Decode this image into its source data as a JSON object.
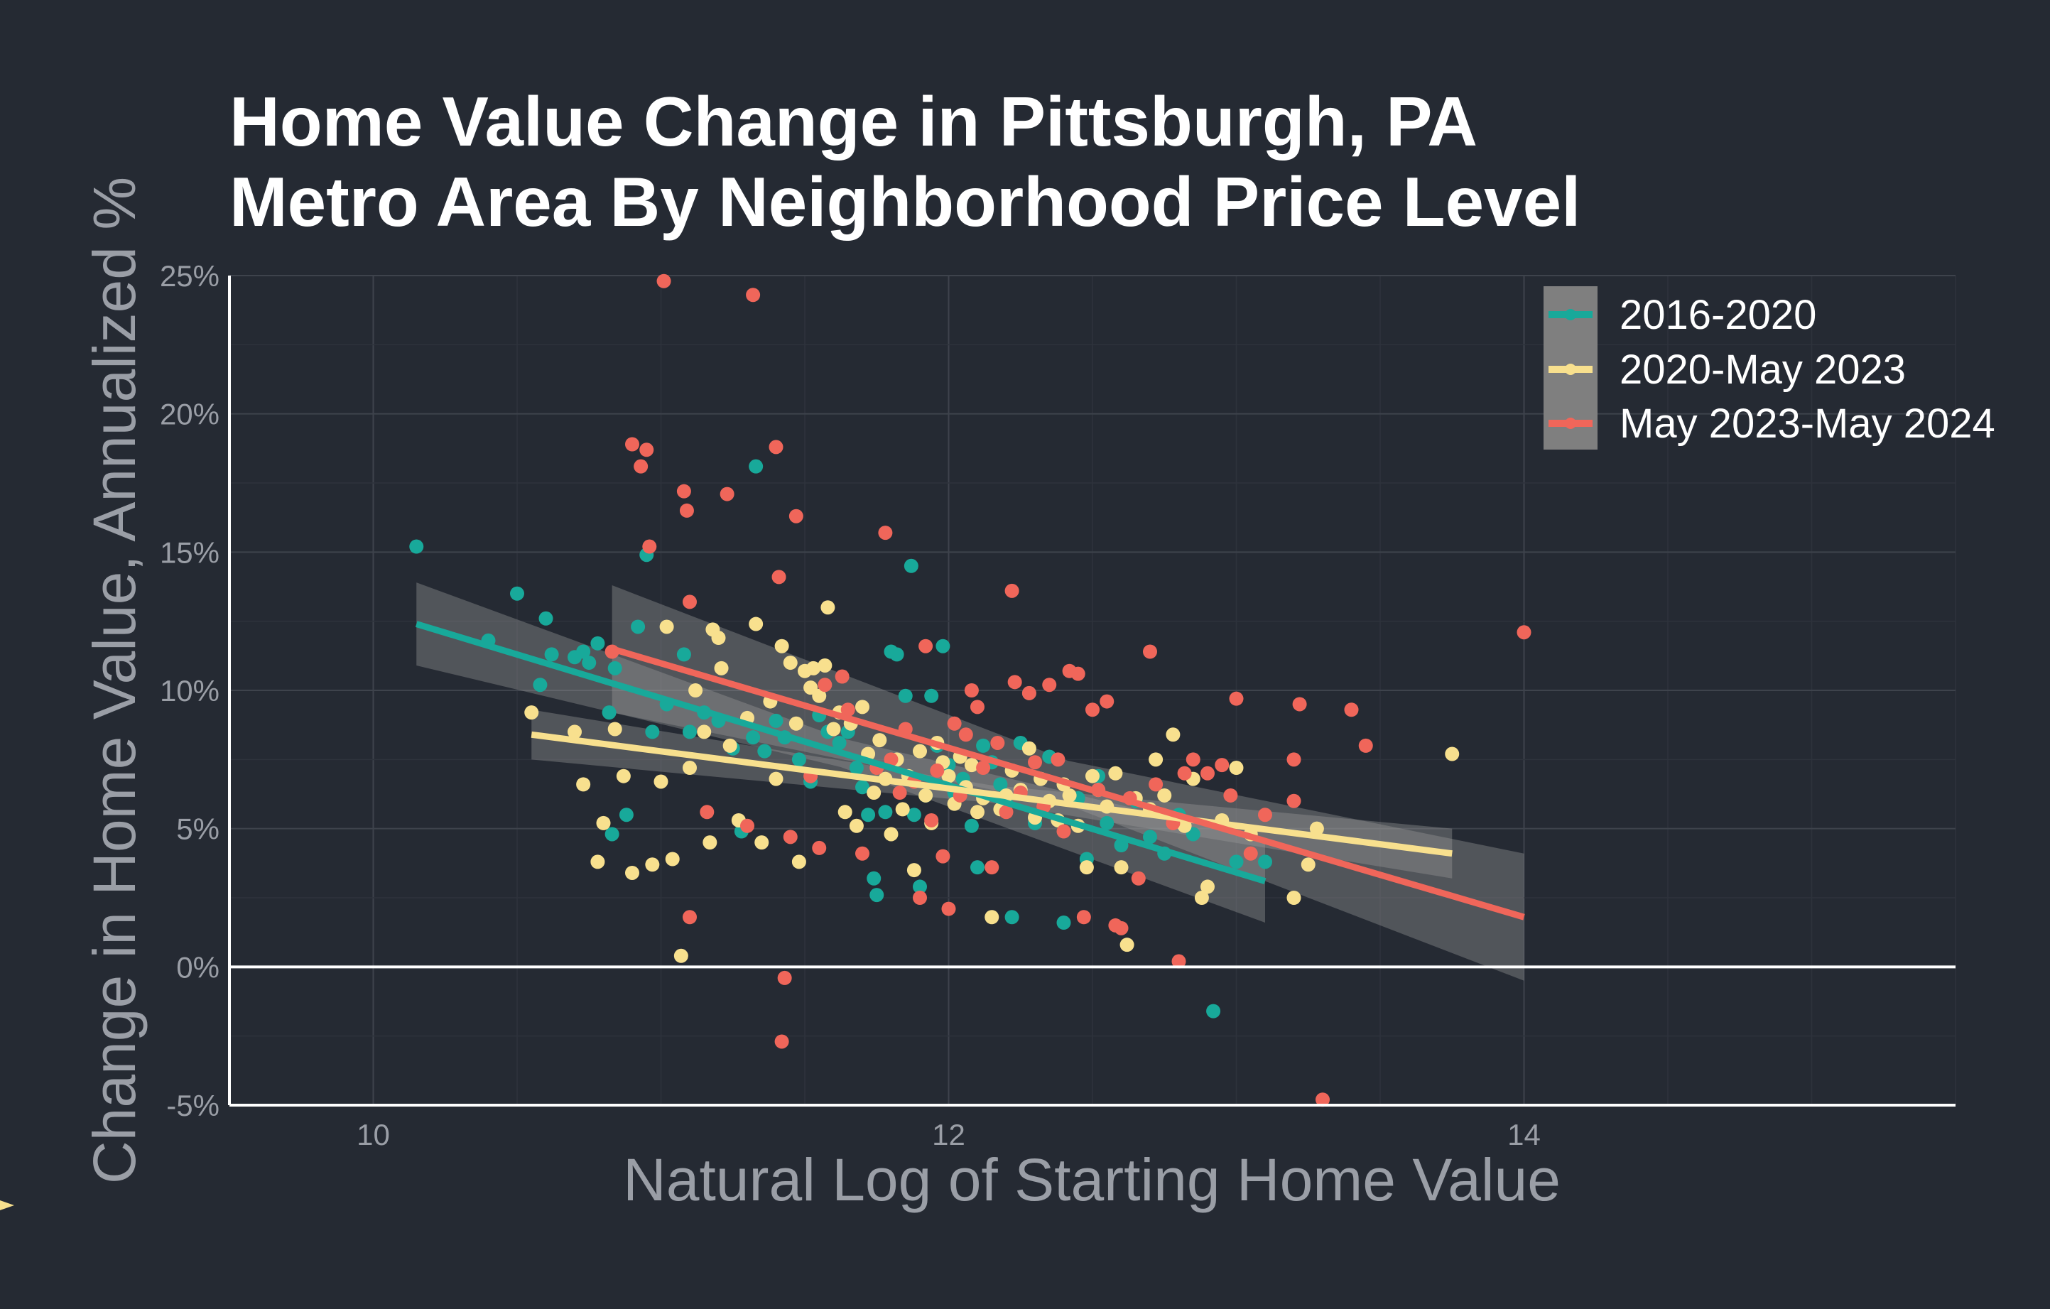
{
  "chart_data": {
    "type": "scatter",
    "title_lines": [
      "Home Value Change in Pittsburgh, PA",
      "Metro Area By Neighborhood Price Level"
    ],
    "xlabel": "Natural Log of Starting Home Value",
    "ylabel": "Change in Home Value, Annualized %",
    "xlim": [
      9.5,
      15.5
    ],
    "ylim": [
      -5,
      25
    ],
    "x_ticks": [
      10,
      12,
      14
    ],
    "x_tick_labels": [
      "10",
      "12",
      "14"
    ],
    "y_ticks": [
      -5,
      0,
      5,
      10,
      15,
      20,
      25
    ],
    "y_tick_labels": [
      "-5%",
      "0%",
      "5%",
      "10%",
      "15%",
      "20%",
      "25%"
    ],
    "grid": true,
    "zero_line": 0,
    "legend": "top-right",
    "series": [
      {
        "name": "2016-2020",
        "color": "#18a99a",
        "trend": {
          "x0": 10.15,
          "y0": 12.4,
          "x1": 13.1,
          "y1": 3.1,
          "band": 1.5
        },
        "points": [
          [
            10.15,
            15.2
          ],
          [
            10.4,
            11.8
          ],
          [
            10.5,
            13.5
          ],
          [
            10.58,
            10.2
          ],
          [
            10.6,
            12.6
          ],
          [
            10.62,
            11.3
          ],
          [
            10.7,
            11.2
          ],
          [
            10.73,
            11.4
          ],
          [
            10.75,
            11
          ],
          [
            10.78,
            11.7
          ],
          [
            10.82,
            9.2
          ],
          [
            10.84,
            10.8
          ],
          [
            10.88,
            5.5
          ],
          [
            10.92,
            12.3
          ],
          [
            10.95,
            14.9
          ],
          [
            10.83,
            4.8
          ],
          [
            10.97,
            8.5
          ],
          [
            11.02,
            9.5
          ],
          [
            11.08,
            11.3
          ],
          [
            11.1,
            8.5
          ],
          [
            11.15,
            9.2
          ],
          [
            11.2,
            8.9
          ],
          [
            11.25,
            7.9
          ],
          [
            11.28,
            4.9
          ],
          [
            11.32,
            8.3
          ],
          [
            11.33,
            18.1
          ],
          [
            11.36,
            7.8
          ],
          [
            11.4,
            8.9
          ],
          [
            11.43,
            8.3
          ],
          [
            11.48,
            7.5
          ],
          [
            11.52,
            6.7
          ],
          [
            11.55,
            9.1
          ],
          [
            11.58,
            8.5
          ],
          [
            11.62,
            8.1
          ],
          [
            11.65,
            8.5
          ],
          [
            11.68,
            7.2
          ],
          [
            11.7,
            6.5
          ],
          [
            11.72,
            5.5
          ],
          [
            11.74,
            3.2
          ],
          [
            11.75,
            2.6
          ],
          [
            11.78,
            5.6
          ],
          [
            11.8,
            11.4
          ],
          [
            11.82,
            11.3
          ],
          [
            11.85,
            9.8
          ],
          [
            11.87,
            14.5
          ],
          [
            11.88,
            5.5
          ],
          [
            11.9,
            2.9
          ],
          [
            11.92,
            6.2
          ],
          [
            11.94,
            9.8
          ],
          [
            11.96,
            8
          ],
          [
            11.98,
            11.6
          ],
          [
            12.0,
            7.3
          ],
          [
            12.02,
            6.3
          ],
          [
            12.05,
            6.8
          ],
          [
            12.08,
            5.1
          ],
          [
            12.1,
            3.6
          ],
          [
            12.12,
            8
          ],
          [
            12.15,
            7.4
          ],
          [
            12.18,
            6.6
          ],
          [
            12.2,
            5.9
          ],
          [
            12.22,
            1.8
          ],
          [
            12.25,
            8.1
          ],
          [
            12.28,
            9.9
          ],
          [
            12.3,
            5.2
          ],
          [
            12.35,
            7.6
          ],
          [
            12.4,
            1.6
          ],
          [
            12.45,
            6.1
          ],
          [
            12.48,
            3.9
          ],
          [
            12.52,
            6.9
          ],
          [
            12.55,
            5.2
          ],
          [
            12.6,
            4.4
          ],
          [
            12.65,
            6
          ],
          [
            12.7,
            4.7
          ],
          [
            12.75,
            4.1
          ],
          [
            12.8,
            5.5
          ],
          [
            12.85,
            4.8
          ],
          [
            12.92,
            -1.6
          ],
          [
            13.0,
            3.8
          ],
          [
            13.1,
            3.8
          ]
        ]
      },
      {
        "name": "2020-May 2023",
        "color": "#f8e08e",
        "trend": {
          "x0": 10.55,
          "y0": 8.4,
          "x1": 13.75,
          "y1": 4.1,
          "band": 0.9
        },
        "points": [
          [
            10.55,
            9.2
          ],
          [
            10.7,
            8.5
          ],
          [
            10.73,
            6.6
          ],
          [
            10.78,
            3.8
          ],
          [
            10.8,
            5.2
          ],
          [
            10.84,
            8.6
          ],
          [
            10.87,
            6.9
          ],
          [
            10.9,
            3.4
          ],
          [
            10.97,
            3.7
          ],
          [
            11.0,
            6.7
          ],
          [
            11.02,
            12.3
          ],
          [
            11.04,
            3.9
          ],
          [
            11.07,
            0.4
          ],
          [
            11.1,
            7.2
          ],
          [
            11.12,
            10
          ],
          [
            11.15,
            8.5
          ],
          [
            11.17,
            4.5
          ],
          [
            11.18,
            12.2
          ],
          [
            11.2,
            11.9
          ],
          [
            11.21,
            10.8
          ],
          [
            11.24,
            8
          ],
          [
            11.27,
            5.3
          ],
          [
            11.3,
            9
          ],
          [
            11.33,
            12.4
          ],
          [
            11.35,
            4.5
          ],
          [
            11.38,
            9.6
          ],
          [
            11.4,
            6.8
          ],
          [
            11.42,
            11.6
          ],
          [
            11.45,
            11
          ],
          [
            11.47,
            8.8
          ],
          [
            11.48,
            3.8
          ],
          [
            11.5,
            10.7
          ],
          [
            11.52,
            10.1
          ],
          [
            11.53,
            10.8
          ],
          [
            11.55,
            9.8
          ],
          [
            11.57,
            10.9
          ],
          [
            11.58,
            13
          ],
          [
            11.6,
            8.6
          ],
          [
            11.62,
            9.2
          ],
          [
            11.64,
            5.6
          ],
          [
            11.66,
            8.8
          ],
          [
            11.68,
            5.1
          ],
          [
            11.7,
            9.4
          ],
          [
            11.72,
            7.7
          ],
          [
            11.74,
            6.3
          ],
          [
            11.76,
            8.2
          ],
          [
            11.78,
            6.8
          ],
          [
            11.8,
            4.8
          ],
          [
            11.82,
            7.5
          ],
          [
            11.84,
            5.7
          ],
          [
            11.86,
            6.9
          ],
          [
            11.88,
            3.5
          ],
          [
            11.9,
            7.8
          ],
          [
            11.92,
            6.2
          ],
          [
            11.94,
            5.2
          ],
          [
            11.96,
            8.1
          ],
          [
            11.98,
            7.4
          ],
          [
            12.0,
            6.9
          ],
          [
            12.02,
            5.9
          ],
          [
            12.04,
            7.6
          ],
          [
            12.06,
            6.5
          ],
          [
            12.08,
            7.3
          ],
          [
            12.1,
            5.6
          ],
          [
            12.12,
            6.1
          ],
          [
            12.15,
            1.8
          ],
          [
            12.18,
            5.7
          ],
          [
            12.2,
            6.2
          ],
          [
            12.22,
            7.1
          ],
          [
            12.25,
            6.4
          ],
          [
            12.28,
            7.9
          ],
          [
            12.3,
            5.4
          ],
          [
            12.32,
            6.8
          ],
          [
            12.35,
            6
          ],
          [
            12.38,
            5.3
          ],
          [
            12.4,
            6.6
          ],
          [
            12.42,
            6.2
          ],
          [
            12.45,
            5.1
          ],
          [
            12.48,
            3.6
          ],
          [
            12.5,
            6.9
          ],
          [
            12.52,
            6.4
          ],
          [
            12.55,
            5.8
          ],
          [
            12.58,
            7
          ],
          [
            12.6,
            3.6
          ],
          [
            12.62,
            0.8
          ],
          [
            12.65,
            6.1
          ],
          [
            12.7,
            5.7
          ],
          [
            12.72,
            7.5
          ],
          [
            12.75,
            6.2
          ],
          [
            12.78,
            8.4
          ],
          [
            12.82,
            5.1
          ],
          [
            12.85,
            6.8
          ],
          [
            12.88,
            2.5
          ],
          [
            12.9,
            2.9
          ],
          [
            12.95,
            5.3
          ],
          [
            13.0,
            7.2
          ],
          [
            13.05,
            4.8
          ],
          [
            13.2,
            2.5
          ],
          [
            13.25,
            3.7
          ],
          [
            13.28,
            5
          ],
          [
            13.75,
            7.7
          ]
        ]
      },
      {
        "name": "May 2023-May 2024",
        "color": "#f0665a",
        "trend": {
          "x0": 10.83,
          "y0": 11.5,
          "x1": 14.0,
          "y1": 1.8,
          "band": 2.3
        },
        "points": [
          [
            10.83,
            11.4
          ],
          [
            10.9,
            18.9
          ],
          [
            10.93,
            18.1
          ],
          [
            10.95,
            18.7
          ],
          [
            10.96,
            15.2
          ],
          [
            11.01,
            24.8
          ],
          [
            11.08,
            17.2
          ],
          [
            11.09,
            16.5
          ],
          [
            11.1,
            13.2
          ],
          [
            11.1,
            1.8
          ],
          [
            11.16,
            5.6
          ],
          [
            11.23,
            17.1
          ],
          [
            11.32,
            24.3
          ],
          [
            11.3,
            5.1
          ],
          [
            11.4,
            18.8
          ],
          [
            11.41,
            14.1
          ],
          [
            11.43,
            -0.4
          ],
          [
            11.42,
            -2.7
          ],
          [
            11.45,
            4.7
          ],
          [
            11.47,
            16.3
          ],
          [
            11.52,
            6.9
          ],
          [
            11.55,
            4.3
          ],
          [
            11.57,
            10.2
          ],
          [
            11.63,
            10.5
          ],
          [
            11.65,
            9.3
          ],
          [
            11.7,
            4.1
          ],
          [
            11.75,
            7.2
          ],
          [
            11.78,
            15.7
          ],
          [
            11.8,
            7.5
          ],
          [
            11.83,
            6.3
          ],
          [
            11.85,
            8.6
          ],
          [
            11.88,
            6.7
          ],
          [
            11.9,
            2.5
          ],
          [
            11.92,
            11.6
          ],
          [
            11.94,
            5.3
          ],
          [
            11.96,
            7.1
          ],
          [
            11.98,
            4
          ],
          [
            12.0,
            2.1
          ],
          [
            12.02,
            8.8
          ],
          [
            12.04,
            6.2
          ],
          [
            12.06,
            8.4
          ],
          [
            12.08,
            10
          ],
          [
            12.1,
            9.4
          ],
          [
            12.12,
            7.2
          ],
          [
            12.15,
            3.6
          ],
          [
            12.17,
            8.1
          ],
          [
            12.2,
            5.6
          ],
          [
            12.22,
            13.6
          ],
          [
            12.23,
            10.3
          ],
          [
            12.25,
            6.3
          ],
          [
            12.28,
            9.9
          ],
          [
            12.3,
            7.4
          ],
          [
            12.33,
            5.8
          ],
          [
            12.35,
            10.2
          ],
          [
            12.38,
            7.5
          ],
          [
            12.4,
            4.9
          ],
          [
            12.42,
            10.7
          ],
          [
            12.45,
            10.6
          ],
          [
            12.47,
            1.8
          ],
          [
            12.5,
            9.3
          ],
          [
            12.52,
            6.4
          ],
          [
            12.55,
            9.6
          ],
          [
            12.58,
            1.5
          ],
          [
            12.6,
            1.4
          ],
          [
            12.63,
            6.1
          ],
          [
            12.66,
            3.2
          ],
          [
            12.7,
            11.4
          ],
          [
            12.72,
            6.6
          ],
          [
            12.78,
            5.2
          ],
          [
            12.82,
            7
          ],
          [
            12.85,
            7.5
          ],
          [
            12.9,
            7
          ],
          [
            12.95,
            7.3
          ],
          [
            12.98,
            6.2
          ],
          [
            13.0,
            9.7
          ],
          [
            13.05,
            4.1
          ],
          [
            13.1,
            5.5
          ],
          [
            13.2,
            7.5
          ],
          [
            13.22,
            9.5
          ],
          [
            13.2,
            6
          ],
          [
            13.3,
            -4.8
          ],
          [
            13.4,
            9.3
          ],
          [
            13.45,
            8
          ],
          [
            12.8,
            0.2
          ],
          [
            14.0,
            12.1
          ]
        ]
      }
    ]
  }
}
